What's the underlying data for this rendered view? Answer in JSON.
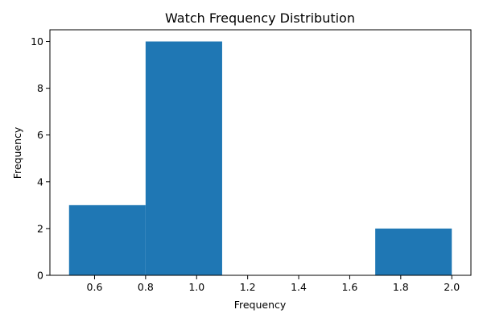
{
  "chart_data": {
    "type": "bar",
    "title": "Watch Frequency Distribution",
    "xlabel": "Frequency",
    "ylabel": "Frequency",
    "xlim": [
      0.425,
      2.075
    ],
    "ylim": [
      0,
      10.5
    ],
    "bins": [
      {
        "x0": 0.5,
        "x1": 0.8,
        "count": 3
      },
      {
        "x0": 0.8,
        "x1": 1.1,
        "count": 10
      },
      {
        "x0": 1.1,
        "x1": 1.4,
        "count": 0
      },
      {
        "x0": 1.4,
        "x1": 1.7,
        "count": 0
      },
      {
        "x0": 1.7,
        "x1": 2.0,
        "count": 2
      }
    ],
    "x_ticks": [
      {
        "value": 0.6,
        "label": "0.6"
      },
      {
        "value": 0.8,
        "label": "0.8"
      },
      {
        "value": 1.0,
        "label": "1.0"
      },
      {
        "value": 1.2,
        "label": "1.2"
      },
      {
        "value": 1.4,
        "label": "1.4"
      },
      {
        "value": 1.6,
        "label": "1.6"
      },
      {
        "value": 1.8,
        "label": "1.8"
      },
      {
        "value": 2.0,
        "label": "2.0"
      }
    ],
    "y_ticks": [
      {
        "value": 0,
        "label": "0"
      },
      {
        "value": 2,
        "label": "2"
      },
      {
        "value": 4,
        "label": "4"
      },
      {
        "value": 6,
        "label": "6"
      },
      {
        "value": 8,
        "label": "8"
      },
      {
        "value": 10,
        "label": "10"
      }
    ],
    "grid": false,
    "legend": "none",
    "colors": {
      "bar": "#1f77b4",
      "axis": "#000000",
      "background": "#ffffff"
    }
  }
}
